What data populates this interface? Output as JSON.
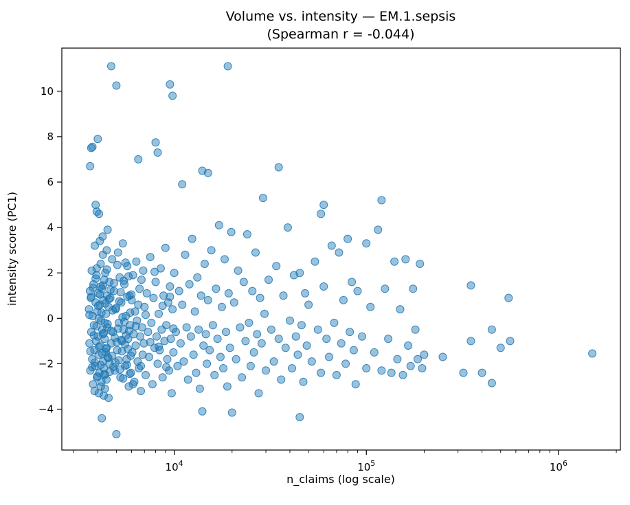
{
  "title": {
    "line1": "Volume vs. intensity — EM.1.sepsis",
    "line2": "(Spearman r = -0.044)"
  },
  "axes": {
    "xlabel": "n_claims (log scale)",
    "ylabel": "intensity score (PC1)"
  },
  "chart_data": {
    "type": "scatter",
    "title": "Volume vs. intensity — EM.1.sepsis",
    "subtitle": "(Spearman r = -0.044)",
    "xlabel": "n_claims (log scale)",
    "ylabel": "intensity score (PC1)",
    "x_scale": "log",
    "grid": false,
    "legend": "none",
    "xlim": [
      2600,
      2100000
    ],
    "ylim": [
      -5.8,
      11.9
    ],
    "x_ticks": [
      {
        "value": 10000,
        "base": "10",
        "exp": "4"
      },
      {
        "value": 100000,
        "base": "10",
        "exp": "5"
      },
      {
        "value": 1000000,
        "base": "10",
        "exp": "6"
      }
    ],
    "y_ticks": [
      {
        "value": -4,
        "label": "−4"
      },
      {
        "value": -2,
        "label": "−2"
      },
      {
        "value": 0,
        "label": "0"
      },
      {
        "value": 2,
        "label": "2"
      },
      {
        "value": 4,
        "label": "4"
      },
      {
        "value": 6,
        "label": "6"
      },
      {
        "value": 8,
        "label": "8"
      },
      {
        "value": 10,
        "label": "10"
      }
    ],
    "marker": {
      "color": "#1f77b4",
      "edge": "#1f77b4",
      "fill_alpha": 0.45,
      "edge_alpha": 0.85,
      "radius": 5.5
    },
    "points": [
      [
        3600,
        0.4
      ],
      [
        3620,
        -1.1
      ],
      [
        3640,
        1.2
      ],
      [
        3660,
        -2.3
      ],
      [
        3680,
        0.9
      ],
      [
        3700,
        -0.6
      ],
      [
        3720,
        2.1
      ],
      [
        3740,
        -1.8
      ],
      [
        3760,
        0.1
      ],
      [
        3780,
        -2.9
      ],
      [
        3800,
        1.5
      ],
      [
        3820,
        -0.3
      ],
      [
        3840,
        -1.4
      ],
      [
        3860,
        3.2
      ],
      [
        3880,
        -2.1
      ],
      [
        3900,
        0.7
      ],
      [
        3920,
        -1.0
      ],
      [
        3940,
        1.9
      ],
      [
        3960,
        -2.6
      ],
      [
        3980,
        0.3
      ],
      [
        4000,
        7.9
      ],
      [
        4000,
        -0.8
      ],
      [
        4020,
        1.1
      ],
      [
        4040,
        -1.6
      ],
      [
        4060,
        4.6
      ],
      [
        4080,
        -2.4
      ],
      [
        4100,
        0.6
      ],
      [
        4120,
        -1.2
      ],
      [
        4140,
        2.4
      ],
      [
        4160,
        -0.1
      ],
      [
        4180,
        -2.8
      ],
      [
        4200,
        1.3
      ],
      [
        4200,
        -4.4
      ],
      [
        4220,
        -0.5
      ],
      [
        4240,
        3.6
      ],
      [
        4260,
        -1.9
      ],
      [
        4280,
        0.8
      ],
      [
        4300,
        -2.2
      ],
      [
        4320,
        1.7
      ],
      [
        4340,
        -0.9
      ],
      [
        4360,
        -3.1
      ],
      [
        4380,
        2.0
      ],
      [
        4400,
        -1.5
      ],
      [
        4420,
        0.2
      ],
      [
        4440,
        -2.7
      ],
      [
        4460,
        1.0
      ],
      [
        4480,
        -0.4
      ],
      [
        4500,
        3.9
      ],
      [
        3650,
        6.7
      ],
      [
        3700,
        7.5
      ],
      [
        3750,
        7.55
      ],
      [
        3900,
        5.0
      ],
      [
        3950,
        4.7
      ],
      [
        4050,
        -3.3
      ],
      [
        4150,
        -3.0
      ],
      [
        4250,
        2.8
      ],
      [
        4350,
        -0.2
      ],
      [
        4450,
        -1.3
      ],
      [
        4550,
        0.5
      ],
      [
        4600,
        -2.0
      ],
      [
        4600,
        1.6
      ],
      [
        3850,
        -3.2
      ],
      [
        4100,
        3.4
      ],
      [
        4300,
        -3.4
      ],
      [
        4500,
        -1.7
      ],
      [
        3950,
        2.2
      ],
      [
        4050,
        0.0
      ],
      [
        4150,
        1.4
      ],
      [
        4250,
        -0.7
      ],
      [
        4350,
        -2.5
      ],
      [
        4450,
        3.0
      ],
      [
        4550,
        -3.5
      ],
      [
        4650,
        0.9
      ],
      [
        4700,
        11.1
      ],
      [
        4700,
        -1.1
      ],
      [
        4750,
        2.6
      ],
      [
        4800,
        -0.6
      ],
      [
        4850,
        1.2
      ],
      [
        4900,
        -2.3
      ],
      [
        4950,
        0.4
      ],
      [
        5000,
        10.25
      ],
      [
        5000,
        -5.1
      ],
      [
        5050,
        -1.4
      ],
      [
        5100,
        2.9
      ],
      [
        5150,
        -0.2
      ],
      [
        5200,
        1.8
      ],
      [
        5250,
        -2.6
      ],
      [
        5300,
        0.7
      ],
      [
        5350,
        -1.0
      ],
      [
        5400,
        3.3
      ],
      [
        5450,
        -0.5
      ],
      [
        5500,
        1.5
      ],
      [
        5550,
        -2.1
      ],
      [
        5600,
        0.1
      ],
      [
        5650,
        -1.8
      ],
      [
        5700,
        2.3
      ],
      [
        5750,
        -0.9
      ],
      [
        5800,
        -3.0
      ],
      [
        5850,
        1.0
      ],
      [
        5900,
        -0.3
      ],
      [
        5950,
        -2.4
      ],
      [
        6000,
        0.8
      ],
      [
        6050,
        -1.5
      ],
      [
        6100,
        1.9
      ],
      [
        6150,
        -0.7
      ],
      [
        6200,
        -2.8
      ],
      [
        6250,
        0.3
      ],
      [
        6300,
        -1.2
      ],
      [
        6350,
        2.5
      ],
      [
        6400,
        -0.1
      ],
      [
        6450,
        -1.9
      ],
      [
        6500,
        7.0
      ],
      [
        6500,
        0.6
      ],
      [
        6550,
        -2.2
      ],
      [
        6600,
        1.3
      ],
      [
        6650,
        -0.8
      ],
      [
        6700,
        -3.2
      ],
      [
        6750,
        1.7
      ],
      [
        6800,
        -0.4
      ],
      [
        6850,
        -1.6
      ],
      [
        6900,
        2.1
      ],
      [
        6950,
        -1.1
      ],
      [
        7000,
        0.5
      ],
      [
        7100,
        -2.5
      ],
      [
        7200,
        1.1
      ],
      [
        7300,
        -0.6
      ],
      [
        7400,
        -1.7
      ],
      [
        7500,
        2.7
      ],
      [
        7600,
        -0.2
      ],
      [
        7700,
        -2.9
      ],
      [
        7800,
        0.9
      ],
      [
        7900,
        -1.3
      ],
      [
        8000,
        7.75
      ],
      [
        8000,
        1.6
      ],
      [
        8100,
        -0.8
      ],
      [
        8200,
        7.3
      ],
      [
        8200,
        -2.0
      ],
      [
        8300,
        0.2
      ],
      [
        8400,
        -1.4
      ],
      [
        8500,
        2.2
      ],
      [
        8600,
        -0.5
      ],
      [
        8700,
        -2.6
      ],
      [
        8800,
        1.0
      ],
      [
        8900,
        -1.0
      ],
      [
        9000,
        3.1
      ],
      [
        9100,
        -0.3
      ],
      [
        9200,
        -1.8
      ],
      [
        9300,
        0.7
      ],
      [
        9400,
        -2.3
      ],
      [
        9500,
        10.3
      ],
      [
        9500,
        1.4
      ],
      [
        9600,
        -0.9
      ],
      [
        9700,
        -3.3
      ],
      [
        9800,
        9.8
      ],
      [
        9800,
        0.4
      ],
      [
        9900,
        -1.5
      ],
      [
        10000,
        2.0
      ],
      [
        10200,
        -0.6
      ],
      [
        10400,
        -2.1
      ],
      [
        10600,
        1.2
      ],
      [
        10800,
        -1.1
      ],
      [
        11000,
        5.9
      ],
      [
        11000,
        0.6
      ],
      [
        11200,
        -1.9
      ],
      [
        11400,
        2.8
      ],
      [
        11600,
        -0.4
      ],
      [
        11800,
        -2.7
      ],
      [
        12000,
        1.5
      ],
      [
        12200,
        -0.8
      ],
      [
        12400,
        3.5
      ],
      [
        12600,
        -1.6
      ],
      [
        12800,
        0.3
      ],
      [
        13000,
        -2.4
      ],
      [
        13200,
        1.8
      ],
      [
        13400,
        -0.5
      ],
      [
        13600,
        -3.1
      ],
      [
        13800,
        1.0
      ],
      [
        14000,
        6.5
      ],
      [
        14000,
        -4.1
      ],
      [
        14200,
        -1.2
      ],
      [
        14400,
        2.4
      ],
      [
        14600,
        -0.7
      ],
      [
        14800,
        -2.0
      ],
      [
        15000,
        6.4
      ],
      [
        15000,
        0.8
      ],
      [
        15300,
        -1.4
      ],
      [
        15600,
        3.0
      ],
      [
        15900,
        -0.3
      ],
      [
        16200,
        -2.5
      ],
      [
        16500,
        1.3
      ],
      [
        16800,
        -0.9
      ],
      [
        17100,
        4.1
      ],
      [
        17400,
        -1.7
      ],
      [
        17700,
        0.5
      ],
      [
        18000,
        -2.2
      ],
      [
        18300,
        2.6
      ],
      [
        18600,
        -0.6
      ],
      [
        18900,
        -3.0
      ],
      [
        19000,
        11.1
      ],
      [
        19200,
        1.1
      ],
      [
        19500,
        -1.3
      ],
      [
        19800,
        3.8
      ],
      [
        20000,
        -4.15
      ],
      [
        20500,
        0.7
      ],
      [
        21000,
        -1.8
      ],
      [
        21500,
        2.1
      ],
      [
        22000,
        -0.4
      ],
      [
        22500,
        -2.6
      ],
      [
        23000,
        1.6
      ],
      [
        23500,
        -1.0
      ],
      [
        24000,
        3.7
      ],
      [
        24500,
        -0.2
      ],
      [
        25000,
        -2.1
      ],
      [
        25500,
        1.2
      ],
      [
        26000,
        -1.5
      ],
      [
        26500,
        2.9
      ],
      [
        27000,
        -0.7
      ],
      [
        27500,
        -3.3
      ],
      [
        28000,
        0.9
      ],
      [
        28500,
        -1.1
      ],
      [
        29000,
        5.3
      ],
      [
        29500,
        0.2
      ],
      [
        30000,
        -2.3
      ],
      [
        31000,
        1.7
      ],
      [
        32000,
        -0.5
      ],
      [
        33000,
        -1.9
      ],
      [
        34000,
        2.3
      ],
      [
        35000,
        6.65
      ],
      [
        35000,
        -0.9
      ],
      [
        36000,
        -2.7
      ],
      [
        37000,
        1.0
      ],
      [
        38000,
        -1.3
      ],
      [
        39000,
        4.0
      ],
      [
        40000,
        -0.1
      ],
      [
        41000,
        -2.2
      ],
      [
        42000,
        1.9
      ],
      [
        43000,
        -0.8
      ],
      [
        44000,
        -1.6
      ],
      [
        45000,
        -4.35
      ],
      [
        45000,
        2.0
      ],
      [
        46000,
        -0.3
      ],
      [
        47000,
        -2.8
      ],
      [
        48000,
        1.1
      ],
      [
        49000,
        -1.2
      ],
      [
        50000,
        0.6
      ],
      [
        52000,
        -1.9
      ],
      [
        54000,
        2.5
      ],
      [
        56000,
        -0.5
      ],
      [
        58000,
        4.6
      ],
      [
        58000,
        -2.4
      ],
      [
        60000,
        5.0
      ],
      [
        60000,
        1.4
      ],
      [
        62000,
        -0.9
      ],
      [
        64000,
        -1.7
      ],
      [
        66000,
        3.2
      ],
      [
        68000,
        -0.2
      ],
      [
        70000,
        -2.5
      ],
      [
        72000,
        2.9
      ],
      [
        74000,
        -1.1
      ],
      [
        76000,
        0.8
      ],
      [
        78000,
        -2.0
      ],
      [
        80000,
        3.5
      ],
      [
        82000,
        -0.6
      ],
      [
        84000,
        1.6
      ],
      [
        86000,
        -1.4
      ],
      [
        88000,
        -2.9
      ],
      [
        90000,
        1.2
      ],
      [
        95000,
        -0.8
      ],
      [
        100000,
        3.3
      ],
      [
        100000,
        -2.2
      ],
      [
        105000,
        0.5
      ],
      [
        110000,
        -1.5
      ],
      [
        115000,
        3.9
      ],
      [
        120000,
        5.2
      ],
      [
        120000,
        -2.3
      ],
      [
        125000,
        1.3
      ],
      [
        130000,
        -0.9
      ],
      [
        135000,
        -2.4
      ],
      [
        140000,
        2.5
      ],
      [
        145000,
        -1.8
      ],
      [
        150000,
        0.4
      ],
      [
        155000,
        -2.5
      ],
      [
        160000,
        2.6
      ],
      [
        165000,
        -1.2
      ],
      [
        170000,
        -2.1
      ],
      [
        175000,
        1.3
      ],
      [
        180000,
        -0.5
      ],
      [
        185000,
        -1.8
      ],
      [
        190000,
        2.4
      ],
      [
        195000,
        -2.2
      ],
      [
        200000,
        -1.6
      ],
      [
        250000,
        -1.7
      ],
      [
        320000,
        -2.4
      ],
      [
        350000,
        1.45
      ],
      [
        350000,
        -1.0
      ],
      [
        400000,
        -2.4
      ],
      [
        450000,
        -0.5
      ],
      [
        450000,
        -2.85
      ],
      [
        500000,
        -1.3
      ],
      [
        550000,
        0.9
      ],
      [
        560000,
        -1.0
      ],
      [
        1500000,
        -1.55
      ],
      [
        3620,
        0.15
      ],
      [
        3660,
        -1.45
      ],
      [
        3700,
        0.95
      ],
      [
        3740,
        -2.15
      ],
      [
        3780,
        1.35
      ],
      [
        3820,
        -0.75
      ],
      [
        3860,
        -1.95
      ],
      [
        3900,
        1.75
      ],
      [
        3940,
        -0.35
      ],
      [
        3980,
        -2.55
      ],
      [
        4020,
        0.55
      ],
      [
        4060,
        -1.25
      ],
      [
        4100,
        1.05
      ],
      [
        4140,
        -2.05
      ],
      [
        4180,
        0.25
      ],
      [
        4220,
        -1.55
      ],
      [
        4260,
        1.45
      ],
      [
        4300,
        -0.65
      ],
      [
        4340,
        -2.45
      ],
      [
        4380,
        0.65
      ],
      [
        4420,
        -1.35
      ],
      [
        4460,
        2.15
      ],
      [
        4500,
        -0.25
      ],
      [
        4540,
        -1.75
      ],
      [
        4580,
        0.85
      ],
      [
        4620,
        -2.35
      ],
      [
        4660,
        1.25
      ],
      [
        4700,
        -0.55
      ],
      [
        4740,
        -1.65
      ],
      [
        4780,
        0.35
      ],
      [
        4820,
        -2.15
      ],
      [
        4860,
        1.55
      ],
      [
        4900,
        -0.85
      ],
      [
        4940,
        -1.95
      ],
      [
        4980,
        0.45
      ],
      [
        5020,
        -1.05
      ],
      [
        5060,
        2.35
      ],
      [
        5100,
        -0.45
      ],
      [
        5140,
        -1.85
      ],
      [
        5180,
        0.75
      ],
      [
        5220,
        -2.25
      ],
      [
        5260,
        1.15
      ],
      [
        5300,
        -0.95
      ],
      [
        5340,
        -1.45
      ],
      [
        5380,
        0.05
      ],
      [
        5420,
        -2.65
      ],
      [
        5460,
        1.65
      ],
      [
        5500,
        -0.15
      ],
      [
        5540,
        -1.15
      ],
      [
        5580,
        2.45
      ],
      [
        5620,
        -0.75
      ],
      [
        5660,
        -2.05
      ],
      [
        5700,
        0.95
      ],
      [
        5740,
        -1.35
      ],
      [
        5780,
        1.85
      ],
      [
        5820,
        -0.55
      ],
      [
        5860,
        -2.45
      ],
      [
        5900,
        0.25
      ],
      [
        5940,
        -1.65
      ],
      [
        5980,
        1.05
      ],
      [
        6100,
        -2.9
      ],
      [
        6300,
        -0.35
      ],
      [
        6700,
        -2.1
      ],
      [
        7100,
        0.15
      ],
      [
        7500,
        -1.05
      ],
      [
        7900,
        2.05
      ],
      [
        8300,
        -1.25
      ],
      [
        8700,
        0.55
      ],
      [
        9100,
        -2.15
      ],
      [
        9500,
        0.95
      ],
      [
        9900,
        -0.45
      ]
    ]
  }
}
